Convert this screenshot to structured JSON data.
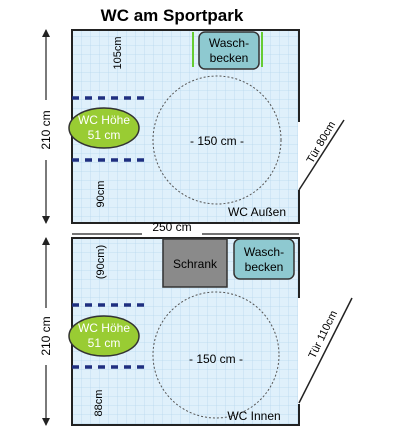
{
  "title": "WC am Sportpark",
  "width_label": "250 cm",
  "top_room": {
    "name": "WC Außen",
    "height_label": "210 cm",
    "sink": [
      "Wasch-",
      "becken"
    ],
    "toilet": [
      "WC Höhe",
      "51 cm"
    ],
    "turning_circle": "- 150 cm -",
    "dim_top": "105cm",
    "dim_bottom": "90cm",
    "door": "Tür 80cm"
  },
  "bottom_room": {
    "name": "WC Innen",
    "height_label": "210 cm",
    "cabinet": "Schrank",
    "sink": [
      "Wasch-",
      "becken"
    ],
    "toilet": [
      "WC Höhe",
      "51 cm"
    ],
    "turning_circle": "- 150 cm -",
    "dim_top": "(90cm)",
    "dim_bottom": "88cm",
    "door": "Tür 110cm"
  },
  "colors": {
    "floor": "#dff0fb",
    "grid": "#b8d8ee",
    "wall": "#222222",
    "toilet": "#99cc33",
    "sink": "#8ec9d0",
    "cabinet": "#8a8a8a",
    "rail": "#1f2f80",
    "sink_bar": "#66cc33"
  }
}
